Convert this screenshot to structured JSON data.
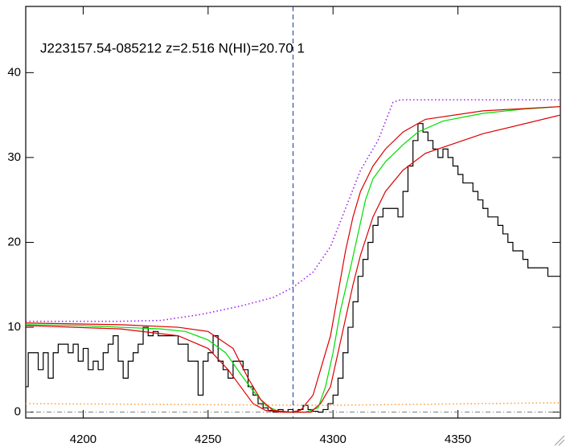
{
  "chart_data": {
    "type": "line",
    "title": "J223157.54-085212 z=2.516 N(HI)=20.70 1",
    "xlim": [
      4177,
      4391
    ],
    "ylim": [
      -0.7,
      47.8
    ],
    "xticks": [
      4200,
      4250,
      4300,
      4350
    ],
    "yticks": [
      0,
      10,
      20,
      30,
      40
    ],
    "vline": {
      "value": 4284,
      "color": "#1a3a9a"
    },
    "hline": {
      "value": 0,
      "color": "#777777"
    },
    "series": [
      {
        "color": "#000000",
        "style": "step",
        "x": [
          4177,
          4179,
          4181,
          4183,
          4185,
          4187,
          4189,
          4191,
          4193,
          4195,
          4197,
          4199,
          4201,
          4203,
          4205,
          4207,
          4209,
          4211,
          4213,
          4215,
          4217,
          4219,
          4221,
          4223,
          4225,
          4227,
          4229,
          4231,
          4233,
          4235,
          4237,
          4239,
          4241,
          4243,
          4245,
          4247,
          4249,
          4251,
          4253,
          4255,
          4257,
          4259,
          4261,
          4263,
          4265,
          4267,
          4269,
          4271,
          4273,
          4275,
          4277,
          4279,
          4281,
          4283,
          4285,
          4287,
          4289,
          4291,
          4293,
          4295,
          4297,
          4299,
          4301,
          4303,
          4305,
          4307,
          4309,
          4311,
          4313,
          4315,
          4317,
          4319,
          4321,
          4323,
          4325,
          4327,
          4329,
          4331,
          4333,
          4335,
          4337,
          4339,
          4341,
          4343,
          4345,
          4347,
          4349,
          4351,
          4353,
          4355,
          4357,
          4359,
          4361,
          4363,
          4365,
          4367,
          4369,
          4371,
          4373,
          4375,
          4377,
          4379,
          4381,
          4383,
          4385,
          4387,
          4389,
          4391
        ],
        "values": [
          3,
          7,
          7,
          5,
          7,
          4,
          7,
          8,
          8,
          7,
          8,
          6,
          7.5,
          5,
          6,
          5,
          7,
          8,
          9,
          6,
          4,
          6,
          7,
          8,
          10,
          9,
          9.5,
          9,
          9,
          9,
          9,
          8,
          8,
          6,
          6,
          2,
          6,
          7,
          9,
          6,
          5,
          4,
          6,
          6,
          5,
          3,
          2,
          1,
          0.5,
          0.2,
          0,
          0.3,
          0,
          0.3,
          0,
          0.3,
          0.8,
          0.3,
          0.1,
          0,
          0.3,
          1,
          2,
          4,
          7,
          10,
          13,
          16,
          18,
          20,
          22,
          23,
          24,
          24,
          24,
          23,
          26,
          29,
          32,
          34,
          33,
          32,
          31,
          30,
          31,
          30,
          29,
          28,
          27,
          27,
          26,
          25,
          24,
          23,
          23,
          22,
          21,
          20,
          19,
          19,
          18,
          17,
          17,
          17,
          17,
          16,
          16,
          16
        ]
      },
      {
        "color": "#00dd00",
        "style": "solid",
        "x": [
          4177,
          4199,
          4215,
          4231,
          4241,
          4250,
          4257,
          4263,
          4268,
          4273,
          4278,
          4283,
          4289,
          4294,
          4297,
          4300,
          4303,
          4307,
          4310,
          4313,
          4316,
          4321,
          4328,
          4334,
          4344,
          4360,
          4376,
          4391
        ],
        "values": [
          10.3,
          10.2,
          10,
          9.8,
          9.5,
          8.5,
          7,
          4.5,
          2.5,
          0.8,
          0.1,
          0,
          0,
          0.5,
          3,
          7,
          12,
          17,
          21,
          25,
          27.5,
          29.5,
          31.5,
          33,
          34.3,
          35.2,
          35.7,
          36
        ]
      },
      {
        "color": "#dd0000",
        "style": "solid",
        "x": [
          4177,
          4215,
          4238,
          4250,
          4260,
          4266,
          4271,
          4276,
          4283,
          4287,
          4292,
          4295,
          4299,
          4302,
          4305,
          4308,
          4311,
          4316,
          4321,
          4328,
          4337,
          4360,
          4391
        ],
        "values": [
          10.5,
          10.3,
          10,
          9.5,
          7.5,
          4,
          1.5,
          0.2,
          0,
          0.2,
          2,
          5,
          9,
          14,
          19,
          23,
          26,
          29,
          31,
          33,
          34.5,
          35.5,
          36
        ]
      },
      {
        "color": "#dd0000",
        "style": "solid",
        "x": [
          4177,
          4215,
          4238,
          4250,
          4258,
          4263,
          4268,
          4273,
          4279,
          4291,
          4295,
          4299,
          4302,
          4305,
          4308,
          4311,
          4316,
          4321,
          4328,
          4337,
          4360,
          4391
        ],
        "values": [
          10.2,
          9.8,
          9,
          7.5,
          5,
          3,
          1,
          0.2,
          0,
          0,
          1,
          3,
          7,
          11,
          15,
          18.5,
          23,
          26,
          28.5,
          30.5,
          32.8,
          35
        ]
      },
      {
        "color": "#a020f0",
        "style": "dotted",
        "x": [
          4177,
          4215,
          4231,
          4247,
          4263,
          4276,
          4284,
          4292,
          4299,
          4305,
          4311,
          4318,
          4324,
          4327,
          4391
        ],
        "values": [
          10.7,
          10.7,
          10.8,
          11.5,
          12.5,
          13.5,
          14.7,
          16.5,
          19.5,
          24,
          28.5,
          32,
          36.5,
          36.8,
          36.8
        ]
      },
      {
        "color": "#ffa040",
        "style": "dotted",
        "x": [
          4177,
          4295,
          4328,
          4391
        ],
        "values": [
          1,
          0.8,
          0.9,
          1.1
        ]
      }
    ]
  }
}
